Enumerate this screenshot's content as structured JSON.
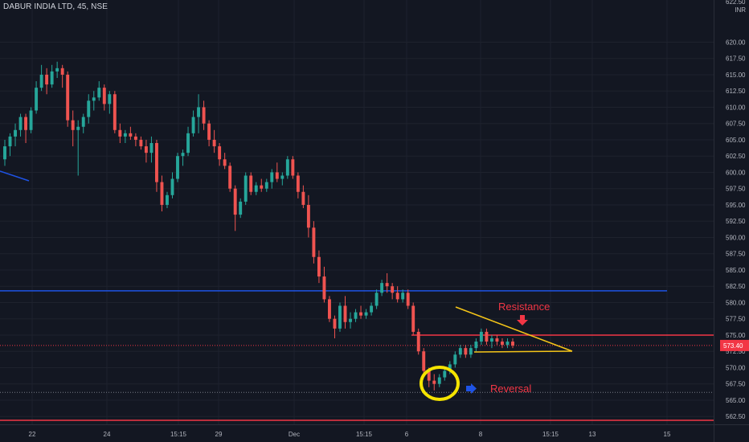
{
  "chart_data": {
    "type": "candlestick",
    "title": "DABUR INDIA LTD, 45, NSE",
    "currency_label": "INR",
    "price_axis": {
      "top_label": "622.50",
      "ticks": [
        620.0,
        617.5,
        615.0,
        612.5,
        610.0,
        607.5,
        605.0,
        602.5,
        600.0,
        597.5,
        595.0,
        592.5,
        590.0,
        587.5,
        585.0,
        582.5,
        580.0,
        577.5,
        575.0,
        572.5,
        570.0,
        567.5,
        565.0,
        562.5
      ],
      "ylim": [
        561.6,
        622.7
      ]
    },
    "time_axis": {
      "labels": [
        "22",
        "24",
        "15:15",
        "29",
        "Dec",
        "15:15",
        "6",
        "8",
        "15:15",
        "13",
        "15"
      ]
    },
    "current_price": {
      "label": "573.40",
      "value": 573.4,
      "color": "#f23645"
    },
    "grid": true,
    "colors": {
      "up": "#26a69a",
      "down": "#ef5350",
      "background": "#131722",
      "grid": "#1e222d"
    },
    "candles": [
      [
        602.0,
        605.0,
        601.0,
        604.0
      ],
      [
        604.0,
        606.0,
        602.5,
        605.5
      ],
      [
        605.5,
        607.5,
        604.0,
        606.5
      ],
      [
        606.5,
        609.0,
        605.5,
        608.5
      ],
      [
        608.5,
        609.0,
        604.5,
        606.5
      ],
      [
        606.5,
        610.0,
        606.0,
        609.5
      ],
      [
        609.5,
        614.0,
        609.0,
        613.0
      ],
      [
        613.0,
        616.5,
        612.5,
        615.0
      ],
      [
        615.0,
        616.0,
        612.0,
        613.5
      ],
      [
        613.5,
        616.5,
        613.0,
        615.5
      ],
      [
        615.5,
        617.0,
        614.5,
        616.0
      ],
      [
        616.0,
        616.5,
        613.0,
        615.0
      ],
      [
        615.0,
        615.5,
        607.0,
        608.0
      ],
      [
        608.0,
        609.5,
        604.0,
        606.5
      ],
      [
        606.5,
        608.0,
        599.5,
        607.0
      ],
      [
        607.0,
        609.0,
        606.0,
        608.5
      ],
      [
        608.5,
        612.0,
        607.5,
        611.0
      ],
      [
        611.0,
        612.5,
        609.5,
        611.5
      ],
      [
        611.5,
        614.0,
        611.0,
        613.0
      ],
      [
        613.0,
        613.5,
        609.5,
        610.5
      ],
      [
        610.5,
        612.5,
        609.0,
        612.0
      ],
      [
        612.0,
        612.5,
        606.0,
        606.5
      ],
      [
        606.5,
        607.5,
        604.5,
        605.5
      ],
      [
        605.5,
        606.5,
        604.5,
        606.0
      ],
      [
        606.0,
        607.0,
        605.0,
        605.5
      ],
      [
        605.5,
        606.0,
        604.0,
        605.0
      ],
      [
        605.0,
        605.5,
        603.5,
        604.0
      ],
      [
        604.0,
        605.0,
        601.5,
        603.0
      ],
      [
        603.0,
        605.5,
        601.5,
        604.5
      ],
      [
        604.5,
        605.0,
        597.0,
        598.5
      ],
      [
        598.5,
        599.5,
        594.0,
        595.0
      ],
      [
        595.0,
        597.0,
        594.5,
        596.5
      ],
      [
        596.5,
        600.0,
        596.0,
        599.0
      ],
      [
        599.0,
        603.0,
        598.5,
        602.5
      ],
      [
        602.5,
        603.5,
        601.0,
        603.0
      ],
      [
        603.0,
        607.0,
        602.5,
        606.0
      ],
      [
        606.0,
        609.5,
        605.5,
        608.5
      ],
      [
        608.5,
        612.0,
        606.0,
        610.0
      ],
      [
        610.0,
        611.0,
        606.5,
        607.5
      ],
      [
        607.5,
        608.0,
        604.0,
        605.0
      ],
      [
        605.0,
        606.5,
        603.0,
        604.0
      ],
      [
        604.0,
        604.5,
        601.0,
        602.0
      ],
      [
        602.0,
        603.0,
        600.5,
        601.0
      ],
      [
        601.0,
        601.5,
        597.0,
        597.5
      ],
      [
        597.5,
        598.0,
        591.0,
        593.5
      ],
      [
        593.5,
        596.0,
        593.0,
        595.5
      ],
      [
        595.5,
        600.0,
        595.0,
        599.5
      ],
      [
        599.5,
        600.0,
        596.5,
        597.0
      ],
      [
        597.0,
        598.5,
        596.5,
        598.0
      ],
      [
        598.0,
        599.0,
        597.0,
        597.5
      ],
      [
        597.5,
        599.0,
        597.0,
        598.5
      ],
      [
        598.5,
        600.5,
        597.5,
        600.0
      ],
      [
        600.0,
        601.5,
        598.5,
        599.0
      ],
      [
        599.0,
        600.0,
        598.0,
        599.5
      ],
      [
        599.5,
        602.5,
        599.0,
        602.0
      ],
      [
        602.0,
        602.5,
        599.0,
        599.5
      ],
      [
        599.5,
        600.0,
        596.0,
        597.0
      ],
      [
        597.0,
        598.0,
        594.5,
        595.0
      ],
      [
        595.0,
        596.5,
        590.0,
        591.5
      ],
      [
        591.5,
        592.5,
        586.0,
        587.0
      ],
      [
        587.0,
        588.0,
        583.0,
        584.0
      ],
      [
        584.0,
        585.5,
        580.0,
        580.5
      ],
      [
        580.5,
        581.0,
        577.0,
        577.5
      ],
      [
        577.5,
        578.0,
        574.5,
        576.0
      ],
      [
        576.0,
        580.0,
        575.5,
        579.5
      ],
      [
        579.5,
        581.0,
        576.0,
        577.0
      ],
      [
        577.0,
        578.5,
        576.0,
        577.5
      ],
      [
        577.5,
        579.0,
        577.0,
        578.5
      ],
      [
        578.5,
        579.5,
        577.5,
        578.0
      ],
      [
        578.0,
        579.0,
        577.5,
        578.5
      ],
      [
        578.5,
        580.0,
        578.0,
        579.5
      ],
      [
        579.5,
        582.0,
        579.0,
        581.5
      ],
      [
        581.5,
        583.5,
        581.0,
        583.0
      ],
      [
        583.0,
        584.5,
        581.5,
        582.5
      ],
      [
        582.5,
        583.0,
        580.5,
        581.5
      ],
      [
        581.5,
        582.5,
        580.0,
        580.5
      ],
      [
        580.5,
        582.0,
        580.0,
        581.5
      ],
      [
        581.5,
        582.0,
        579.0,
        579.5
      ],
      [
        579.5,
        580.0,
        575.0,
        575.5
      ],
      [
        575.5,
        576.0,
        572.0,
        572.5
      ],
      [
        572.5,
        573.0,
        569.0,
        569.5
      ],
      [
        569.5,
        570.0,
        567.0,
        568.0
      ],
      [
        568.0,
        569.0,
        566.5,
        567.5
      ],
      [
        567.5,
        569.0,
        567.0,
        568.5
      ],
      [
        568.5,
        570.0,
        568.0,
        569.5
      ],
      [
        569.5,
        571.0,
        569.0,
        570.5
      ],
      [
        570.5,
        572.5,
        570.0,
        572.0
      ],
      [
        572.0,
        573.5,
        571.5,
        573.0
      ],
      [
        573.0,
        573.5,
        571.5,
        572.0
      ],
      [
        572.0,
        573.5,
        571.5,
        573.0
      ],
      [
        573.0,
        574.5,
        572.5,
        574.0
      ],
      [
        574.0,
        576.0,
        573.5,
        575.5
      ],
      [
        575.5,
        576.0,
        573.5,
        574.0
      ],
      [
        574.0,
        575.0,
        573.0,
        574.5
      ],
      [
        574.5,
        575.0,
        573.5,
        574.0
      ],
      [
        574.0,
        574.5,
        573.0,
        573.5
      ],
      [
        573.5,
        574.5,
        573.0,
        574.0
      ],
      [
        574.0,
        574.5,
        573.0,
        573.4
      ]
    ],
    "annotations": [
      {
        "text": "Resistance",
        "color": "#f23645"
      },
      {
        "text": "Reversal",
        "color": "#f23645"
      }
    ],
    "lines": [
      {
        "name": "horizontal-level",
        "price": 581.8,
        "color": "#1e53e5"
      },
      {
        "name": "resistance-level",
        "price": 575.0,
        "color": "#f23645"
      },
      {
        "name": "bottom-level",
        "price": 561.9,
        "color": "#f23645"
      },
      {
        "name": "dotted-level",
        "price": 566.2,
        "color": "#787b86"
      }
    ]
  }
}
